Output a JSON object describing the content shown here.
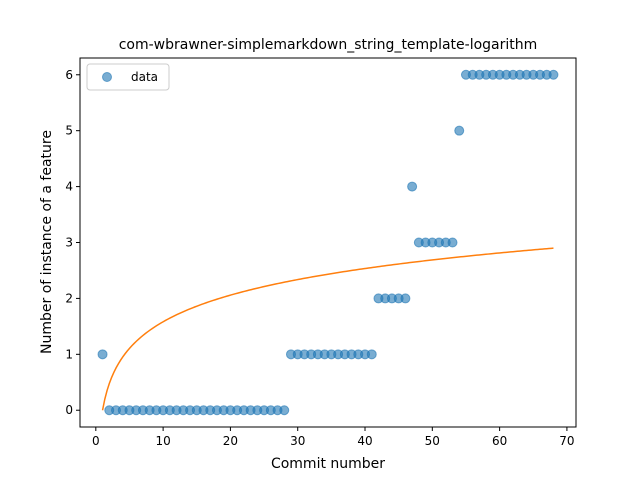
{
  "chart_data": {
    "type": "scatter",
    "title": "com-wbrawner-simplemarkdown_string_template-logarithm",
    "xlabel": "Commit number",
    "ylabel": "Number of instance of a feature",
    "xlim": [
      -2.35,
      71.35
    ],
    "ylim": [
      -0.3,
      6.3
    ],
    "xticks": [
      0,
      10,
      20,
      30,
      40,
      50,
      60,
      70
    ],
    "yticks": [
      0,
      1,
      2,
      3,
      4,
      5,
      6
    ],
    "grid": false,
    "legend": {
      "position": "top-left",
      "entries": [
        "data"
      ]
    },
    "series": [
      {
        "name": "data",
        "kind": "scatter",
        "color": "#1f77b4",
        "x": [
          1,
          2,
          3,
          4,
          5,
          6,
          7,
          8,
          9,
          10,
          11,
          12,
          13,
          14,
          15,
          16,
          17,
          18,
          19,
          20,
          21,
          22,
          23,
          24,
          25,
          26,
          27,
          28,
          29,
          30,
          31,
          32,
          33,
          34,
          35,
          36,
          37,
          38,
          39,
          40,
          41,
          42,
          43,
          44,
          45,
          46,
          47,
          48,
          49,
          50,
          51,
          52,
          53,
          54,
          55,
          56,
          57,
          58,
          59,
          60,
          61,
          62,
          63,
          64,
          65,
          66,
          67,
          68
        ],
        "y": [
          1,
          0,
          0,
          0,
          0,
          0,
          0,
          0,
          0,
          0,
          0,
          0,
          0,
          0,
          0,
          0,
          0,
          0,
          0,
          0,
          0,
          0,
          0,
          0,
          0,
          0,
          0,
          0,
          1,
          1,
          1,
          1,
          1,
          1,
          1,
          1,
          1,
          1,
          1,
          1,
          1,
          2,
          2,
          2,
          2,
          2,
          4,
          3,
          3,
          3,
          3,
          3,
          3,
          5,
          6,
          6,
          6,
          6,
          6,
          6,
          6,
          6,
          6,
          6,
          6,
          6,
          6,
          6
        ]
      },
      {
        "kind": "line",
        "color": "#ff7f0e",
        "function": "log",
        "coef_a": 0.6871,
        "coef_b": 0.0,
        "x_range": [
          1,
          68
        ]
      }
    ]
  }
}
